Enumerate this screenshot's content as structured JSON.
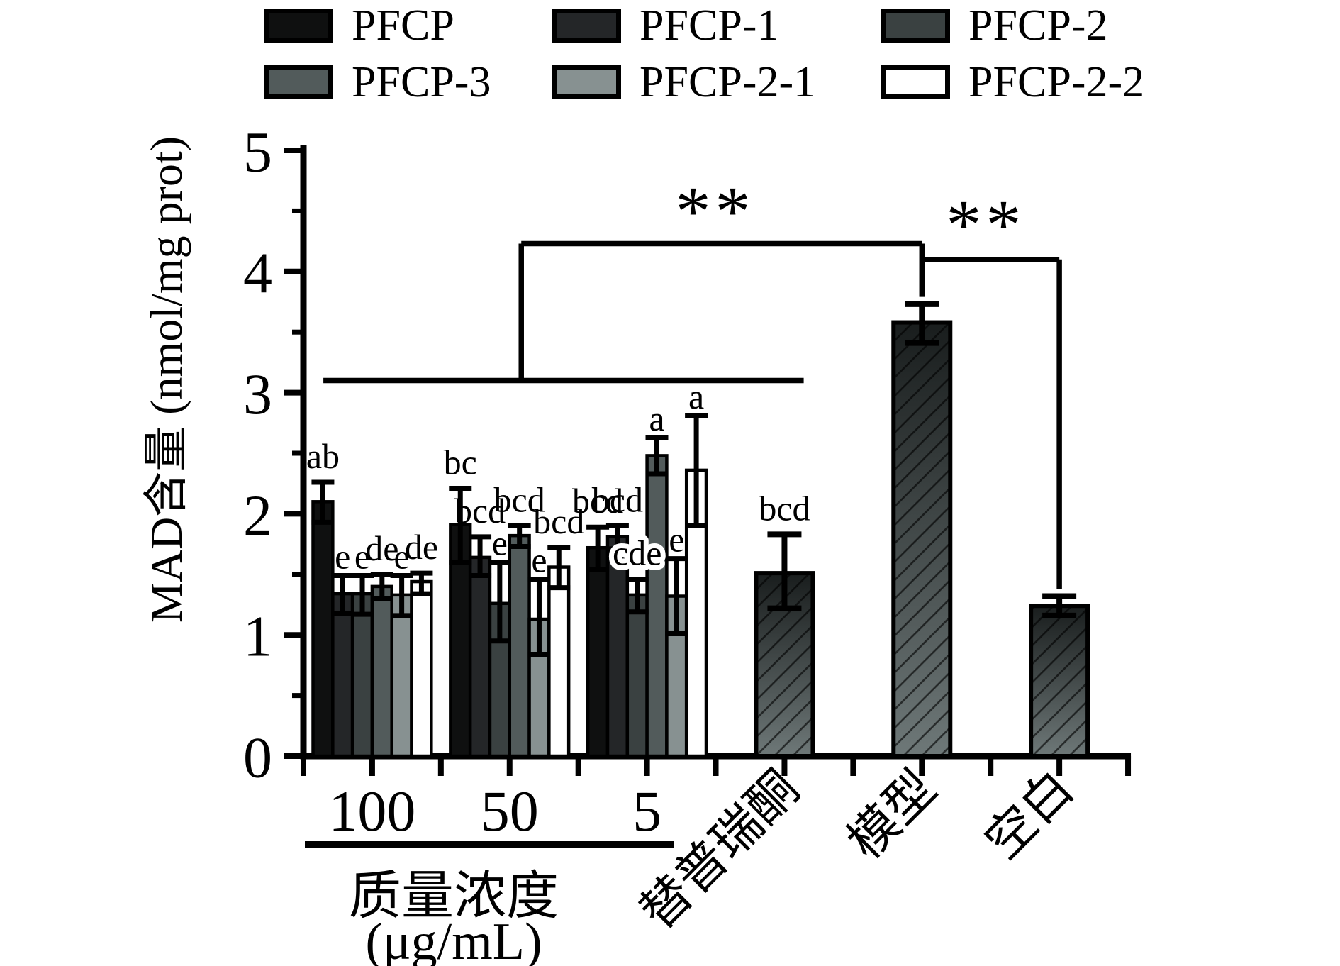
{
  "figure": {
    "background": "#ffffff"
  },
  "legend": {
    "items": [
      {
        "label": "PFCP",
        "color": "#0f1010"
      },
      {
        "label": "PFCP-1",
        "color": "#242628"
      },
      {
        "label": "PFCP-2",
        "color": "#3a4141"
      },
      {
        "label": "PFCP-3",
        "color": "#525b5b"
      },
      {
        "label": "PFCP-2-1",
        "color": "#879191"
      },
      {
        "label": "PFCP-2-2",
        "color": "#ffffff"
      }
    ]
  },
  "chart_data": {
    "type": "bar",
    "title": "",
    "ylabel": "MAD含量 (nmol/mg prot)",
    "xlabel_line1": "质量浓度",
    "xlabel_line2": "(μg/mL)",
    "ylim": [
      0,
      5
    ],
    "y_major_ticks": [
      "0",
      "1",
      "2",
      "3",
      "4",
      "5"
    ],
    "y_minor_step": 0.5,
    "grid": false,
    "legend_position": "top",
    "series": [
      "PFCP",
      "PFCP-1",
      "PFCP-2",
      "PFCP-3",
      "PFCP-2-1",
      "PFCP-2-2"
    ],
    "categories": [
      "100",
      "50",
      "5"
    ],
    "groups": [
      {
        "label": "100",
        "bars": [
          {
            "series": "PFCP",
            "value": 2.1,
            "err_up": 0.16,
            "err_down": 0.17,
            "sig": "ab"
          },
          {
            "series": "PFCP-1",
            "value": 1.34,
            "err_up": 0.15,
            "err_down": 0.16,
            "sig": "e"
          },
          {
            "series": "PFCP-2",
            "value": 1.34,
            "err_up": 0.15,
            "err_down": 0.17,
            "sig": "e"
          },
          {
            "series": "PFCP-3",
            "value": 1.4,
            "err_up": 0.1,
            "err_down": 0.1,
            "sig": "de"
          },
          {
            "series": "PFCP-2-1",
            "value": 1.33,
            "err_up": 0.16,
            "err_down": 0.17,
            "sig": "e"
          },
          {
            "series": "PFCP-2-2",
            "value": 1.44,
            "err_up": 0.07,
            "err_down": 0.1,
            "sig": "de"
          }
        ]
      },
      {
        "label": "50",
        "bars": [
          {
            "series": "PFCP",
            "value": 1.91,
            "err_up": 0.3,
            "err_down": 0.31,
            "sig": "bc"
          },
          {
            "series": "PFCP-1",
            "value": 1.64,
            "err_up": 0.17,
            "err_down": 0.15,
            "sig": "bcd"
          },
          {
            "series": "PFCP-2",
            "value": 1.26,
            "err_up": 0.34,
            "err_down": 0.31,
            "sig": "e"
          },
          {
            "series": "PFCP-3",
            "value": 1.82,
            "err_up": 0.08,
            "err_down": 0.09,
            "sig": "bcd"
          },
          {
            "series": "PFCP-2-1",
            "value": 1.13,
            "err_up": 0.33,
            "err_down": 0.29,
            "sig": "e"
          },
          {
            "series": "PFCP-2-2",
            "value": 1.56,
            "err_up": 0.16,
            "err_down": 0.17,
            "sig": "bcd"
          }
        ]
      },
      {
        "label": "5",
        "bars": [
          {
            "series": "PFCP",
            "value": 1.72,
            "err_up": 0.17,
            "err_down": 0.18,
            "sig": "bcd"
          },
          {
            "series": "PFCP-1",
            "value": 1.81,
            "err_up": 0.09,
            "err_down": 0.1,
            "sig": "bcd"
          },
          {
            "series": "PFCP-2",
            "value": 1.33,
            "err_up": 0.13,
            "err_down": 0.14,
            "sig": "cde",
            "sig_halo": true
          },
          {
            "series": "PFCP-3",
            "value": 2.48,
            "err_up": 0.15,
            "err_down": 0.15,
            "sig": "a"
          },
          {
            "series": "PFCP-2-1",
            "value": 1.32,
            "err_up": 0.31,
            "err_down": 0.31,
            "sig": "e"
          },
          {
            "series": "PFCP-2-2",
            "value": 2.36,
            "err_up": 0.45,
            "err_down": 0.46,
            "sig": "a"
          }
        ]
      }
    ],
    "single_bars": [
      {
        "label": "替普瑞酮",
        "value": 1.51,
        "err_up": 0.32,
        "err_down": 0.29,
        "sig": "bcd"
      },
      {
        "label": "模型",
        "value": 3.58,
        "err_up": 0.15,
        "err_down": 0.17,
        "sig": ""
      },
      {
        "label": "空白",
        "value": 1.24,
        "err_up": 0.08,
        "err_down": 0.08,
        "sig": ""
      }
    ],
    "annotations": {
      "sig_marks": [
        {
          "text": "**",
          "x_slot": 5.99,
          "y_value": 4.49
        },
        {
          "text": "**",
          "x_slot": 9.93,
          "y_value": 4.38
        }
      ],
      "bracket_polylines": [
        [
          [
            0.29,
            3.1
          ],
          [
            7.28,
            3.1
          ]
        ],
        [
          [
            3.17,
            3.1
          ],
          [
            3.17,
            4.23
          ]
        ],
        [
          [
            3.17,
            4.23
          ],
          [
            9.0,
            4.23
          ]
        ],
        [
          [
            9.0,
            4.23
          ],
          [
            9.0,
            3.79
          ]
        ],
        [
          [
            9.0,
            4.1
          ],
          [
            11.0,
            4.1
          ]
        ],
        [
          [
            11.0,
            4.1
          ],
          [
            11.0,
            1.38
          ]
        ]
      ]
    },
    "single_bar_style": {
      "gradient_top": "#191d1d",
      "gradient_bottom": "#6e7878",
      "hatch": "diagonal"
    }
  }
}
